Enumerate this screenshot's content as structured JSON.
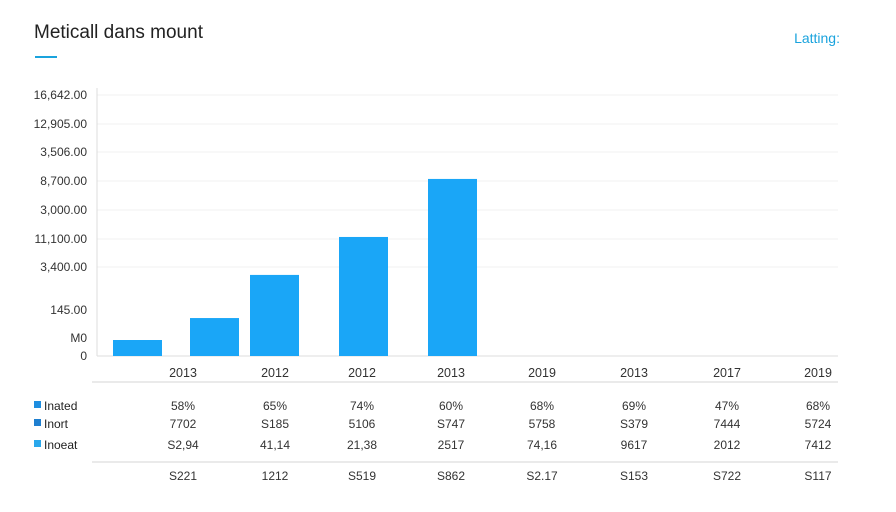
{
  "header": {
    "title": "Meticall dans mount",
    "link": "Latting:"
  },
  "colors": {
    "bar": "#1aa6f7",
    "accent": "#1aa3dd",
    "legend": [
      "#1e8ee0",
      "#1e7fd0",
      "#2aa8ec"
    ]
  },
  "chart_data": {
    "type": "bar",
    "title": "Meticall dans mount",
    "y_tick_labels": [
      "16,642.00",
      "12,905.00",
      "3,506.00",
      "8,700.00",
      "3,000.00",
      "11,100.00",
      "3,400.00",
      "145.00",
      "M0",
      "0"
    ],
    "ylim": [
      0,
      16642
    ],
    "categories": [
      "2013",
      "2012",
      "2012",
      "2013",
      "2019",
      "2013",
      "2017",
      "2019"
    ],
    "values": [
      1020,
      2420,
      5170,
      7590,
      11290,
      null,
      null,
      null
    ],
    "grid": true
  },
  "table": {
    "rows": [
      {
        "label": "Inated",
        "values": [
          "58%",
          "65%",
          "74%",
          "60%",
          "68%",
          "69%",
          "47%",
          "68%"
        ]
      },
      {
        "label": "Inort",
        "values": [
          "7702",
          "S185",
          "5106",
          "S747",
          "5758",
          "S379",
          "7444",
          "5724"
        ]
      },
      {
        "label": "Inoeat",
        "values": [
          "S2,94",
          "41,14",
          "21,38",
          "2517",
          "74,16",
          "9617",
          "2012",
          "7412"
        ]
      }
    ],
    "totals": [
      "S221",
      "1212",
      "S519",
      "S862",
      "S2.17",
      "S153",
      "S722",
      "S117"
    ]
  }
}
